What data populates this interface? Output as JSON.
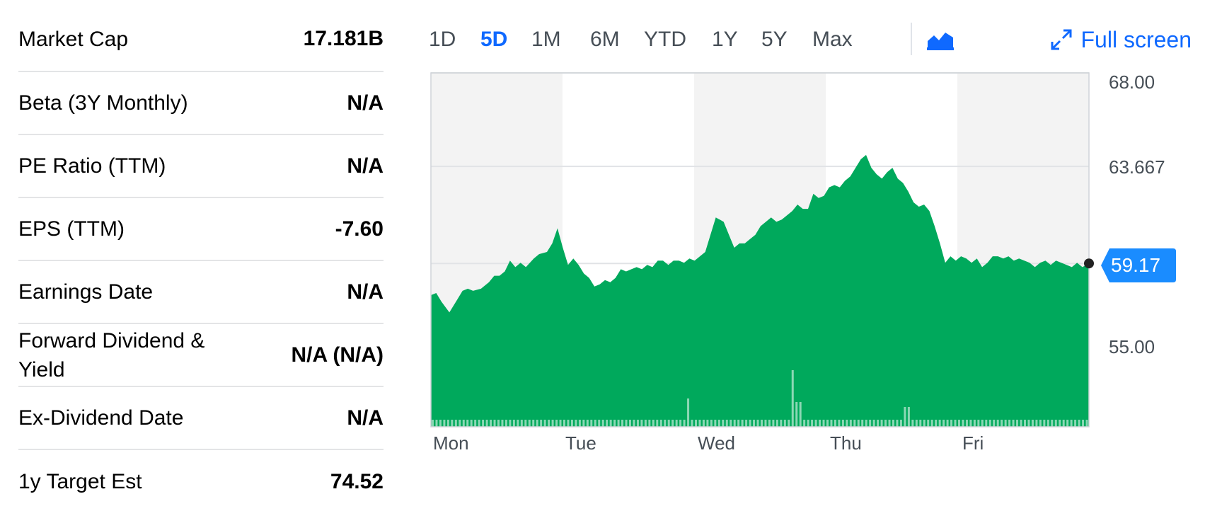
{
  "stats": [
    {
      "label": "Market Cap",
      "value": "17.181B"
    },
    {
      "label": "Beta (3Y Monthly)",
      "value": "N/A"
    },
    {
      "label": "PE Ratio (TTM)",
      "value": "N/A"
    },
    {
      "label": "EPS (TTM)",
      "value": "-7.60"
    },
    {
      "label": "Earnings Date",
      "value": "N/A"
    },
    {
      "label": "Forward Dividend & Yield",
      "value": "N/A (N/A)"
    },
    {
      "label": "Ex-Dividend Date",
      "value": "N/A"
    },
    {
      "label": "1y Target Est",
      "value": "74.52"
    }
  ],
  "toolbar": {
    "ranges": [
      "1D",
      "5D",
      "1M",
      "6M",
      "YTD",
      "1Y",
      "5Y",
      "Max"
    ],
    "active_range": "5D",
    "chart_type_icon": "mountain-chart-icon",
    "fullscreen_icon": "expand-arrows-icon",
    "fullscreen_label": "Full screen"
  },
  "colors": {
    "accent": "#0f69ff",
    "area_fill": "#00a95c",
    "price_tag": "#1a8cff",
    "day_band": "#f3f3f3",
    "text": "#464e56"
  },
  "chart_data": {
    "type": "area",
    "y_ticks": [
      "68.00",
      "63.667",
      "59.17",
      "55.00"
    ],
    "ylim": [
      51.6,
      68.0
    ],
    "x_ticks": [
      "Mon",
      "Tue",
      "Wed",
      "Thu",
      "Fri"
    ],
    "last_price": "59.17",
    "x": [
      0,
      1,
      2,
      3,
      4,
      5,
      6,
      7,
      8,
      9,
      10,
      11,
      12,
      13,
      14,
      15,
      16,
      17,
      18,
      19,
      20,
      21,
      22,
      23,
      24,
      25,
      26,
      27,
      28,
      29,
      30,
      31,
      32,
      33,
      34,
      35,
      36,
      37,
      38,
      39,
      40,
      41,
      42,
      43,
      44,
      45,
      46,
      47,
      48,
      49,
      50,
      51,
      52,
      53,
      54,
      55,
      56,
      57,
      58,
      59,
      60,
      61,
      62,
      63,
      64,
      65,
      66,
      67,
      68,
      69,
      70,
      71,
      72,
      73,
      74,
      75,
      76,
      77,
      78,
      79,
      80,
      81,
      82,
      83,
      84,
      85,
      86,
      87,
      88,
      89,
      90,
      91,
      92,
      93,
      94,
      95,
      96,
      97,
      98,
      99,
      100,
      101,
      102,
      103,
      104,
      105,
      106,
      107,
      108,
      109,
      110,
      111,
      112,
      113,
      114,
      115,
      116,
      117,
      118,
      119,
      120,
      121,
      122,
      123,
      124,
      125,
      126,
      127,
      128,
      129,
      130,
      131,
      132,
      133,
      134,
      135,
      136,
      137,
      138,
      139,
      140,
      141,
      142,
      143,
      144,
      145,
      146,
      147,
      148,
      149,
      150,
      151,
      152,
      153,
      154,
      155,
      156,
      157,
      158,
      159,
      160,
      161,
      162,
      163,
      164,
      165,
      166,
      167,
      168,
      169,
      170,
      171,
      172,
      173,
      174,
      175,
      176,
      177,
      178,
      179,
      180,
      181,
      182,
      183,
      184,
      185,
      186,
      187,
      188,
      189,
      190,
      191,
      192,
      193,
      194,
      195,
      196,
      197,
      198,
      199,
      200,
      201,
      202,
      203,
      204,
      205,
      206,
      207,
      208,
      209,
      210,
      211,
      212,
      213,
      214,
      215,
      216,
      217,
      218,
      219,
      220,
      221,
      222,
      223,
      224,
      225,
      226,
      227,
      228,
      229,
      230,
      231,
      232,
      233,
      234,
      235,
      236,
      237,
      238,
      239,
      240,
      241,
      242,
      243,
      244,
      245,
      246,
      247,
      248,
      249,
      250,
      251,
      252,
      253,
      254,
      255,
      256,
      257,
      258,
      259,
      260,
      261,
      262,
      263,
      264,
      265,
      266,
      267,
      268,
      269,
      270,
      271,
      272,
      273,
      274,
      275,
      276,
      277,
      278,
      279,
      280,
      281,
      282,
      283,
      284,
      285,
      286,
      287,
      288,
      289,
      290,
      291,
      292,
      293,
      294,
      295,
      296,
      297,
      298,
      299,
      300,
      301,
      302,
      303,
      304,
      305,
      306,
      307,
      308,
      309,
      310,
      311,
      312,
      313,
      314,
      315,
      316,
      317,
      318,
      319,
      320,
      321,
      322,
      323,
      324,
      325,
      326,
      327,
      328,
      329,
      330,
      331,
      332,
      333,
      334,
      335,
      336,
      337,
      338,
      339,
      340,
      341,
      342,
      343,
      344,
      345,
      346,
      347,
      348,
      349,
      350,
      351,
      352,
      353,
      354,
      355,
      356,
      357,
      358,
      359,
      360,
      361,
      362,
      363,
      364,
      365,
      366,
      367,
      368,
      369,
      370,
      371,
      372,
      373,
      374,
      375,
      376,
      377,
      378,
      379,
      380,
      381,
      382,
      383,
      384,
      385,
      386,
      387,
      388,
      389,
      390,
      391,
      392,
      393,
      394,
      395,
      396,
      397,
      398,
      399,
      400,
      401,
      402,
      403,
      404,
      405,
      406,
      407,
      408,
      409,
      410,
      411,
      412,
      413,
      414,
      415,
      416,
      417,
      418,
      419,
      420,
      421,
      422,
      423,
      424,
      425,
      426,
      427,
      428,
      429,
      430,
      431,
      432,
      433,
      434,
      435,
      436,
      437,
      438,
      439,
      440,
      441,
      442,
      443,
      444,
      445,
      446,
      447,
      448,
      449,
      450,
      451,
      452,
      453,
      454,
      455,
      456,
      457,
      458,
      459,
      460,
      461,
      462,
      463,
      464,
      465,
      466,
      467,
      468,
      469,
      470,
      471,
      472,
      473,
      474,
      475,
      476,
      477,
      478,
      479,
      480,
      481,
      482,
      483,
      484,
      485,
      486,
      487,
      488,
      489,
      490,
      491,
      492,
      493,
      494,
      495,
      496,
      497,
      498,
      499
    ],
    "price_points": [
      [
        0,
        57.7
      ],
      [
        4,
        57.8
      ],
      [
        8,
        57.4
      ],
      [
        14,
        56.9
      ],
      [
        20,
        57.5
      ],
      [
        24,
        57.9
      ],
      [
        28,
        58.0
      ],
      [
        32,
        57.9
      ],
      [
        38,
        58.0
      ],
      [
        44,
        58.3
      ],
      [
        48,
        58.6
      ],
      [
        52,
        58.6
      ],
      [
        56,
        58.8
      ],
      [
        60,
        59.3
      ],
      [
        64,
        59.0
      ],
      [
        68,
        59.2
      ],
      [
        72,
        59.0
      ],
      [
        78,
        59.4
      ],
      [
        82,
        59.6
      ],
      [
        88,
        59.7
      ],
      [
        92,
        60.1
      ],
      [
        96,
        60.8
      ],
      [
        100,
        59.9
      ],
      [
        104,
        59.1
      ],
      [
        108,
        59.4
      ],
      [
        112,
        59.1
      ],
      [
        116,
        58.7
      ],
      [
        120,
        58.5
      ],
      [
        124,
        58.1
      ],
      [
        128,
        58.2
      ],
      [
        132,
        58.4
      ],
      [
        136,
        58.3
      ],
      [
        140,
        58.5
      ],
      [
        144,
        58.9
      ],
      [
        148,
        58.8
      ],
      [
        152,
        58.9
      ],
      [
        156,
        59.0
      ],
      [
        160,
        58.9
      ],
      [
        164,
        59.1
      ],
      [
        168,
        59.0
      ],
      [
        172,
        59.3
      ],
      [
        176,
        59.3
      ],
      [
        180,
        59.1
      ],
      [
        184,
        59.3
      ],
      [
        188,
        59.3
      ],
      [
        192,
        59.2
      ],
      [
        196,
        59.4
      ],
      [
        200,
        59.3
      ],
      [
        204,
        59.5
      ],
      [
        208,
        59.7
      ],
      [
        212,
        60.5
      ],
      [
        216,
        61.3
      ],
      [
        219,
        61.2
      ],
      [
        222,
        61.1
      ],
      [
        226,
        60.5
      ],
      [
        230,
        59.9
      ],
      [
        234,
        60.1
      ],
      [
        238,
        60.1
      ],
      [
        242,
        60.3
      ],
      [
        246,
        60.5
      ],
      [
        250,
        60.9
      ],
      [
        254,
        61.1
      ],
      [
        258,
        61.3
      ],
      [
        262,
        61.1
      ],
      [
        266,
        61.2
      ],
      [
        270,
        61.4
      ],
      [
        274,
        61.6
      ],
      [
        278,
        61.9
      ],
      [
        282,
        61.7
      ],
      [
        286,
        61.7
      ],
      [
        290,
        62.4
      ],
      [
        294,
        62.2
      ],
      [
        298,
        62.3
      ],
      [
        302,
        62.7
      ],
      [
        306,
        62.8
      ],
      [
        310,
        62.7
      ],
      [
        314,
        63.0
      ],
      [
        318,
        63.2
      ],
      [
        322,
        63.6
      ],
      [
        326,
        64.0
      ],
      [
        330,
        64.2
      ],
      [
        334,
        63.6
      ],
      [
        338,
        63.3
      ],
      [
        342,
        63.1
      ],
      [
        346,
        63.4
      ],
      [
        350,
        63.6
      ],
      [
        354,
        63.1
      ],
      [
        358,
        62.9
      ],
      [
        362,
        62.5
      ],
      [
        366,
        62.0
      ],
      [
        370,
        61.8
      ],
      [
        374,
        61.9
      ],
      [
        378,
        61.6
      ],
      [
        382,
        60.9
      ],
      [
        386,
        60.1
      ],
      [
        390,
        59.2
      ],
      [
        394,
        59.5
      ],
      [
        398,
        59.3
      ],
      [
        402,
        59.5
      ],
      [
        406,
        59.4
      ],
      [
        410,
        59.2
      ],
      [
        414,
        59.4
      ],
      [
        418,
        59.0
      ],
      [
        422,
        59.2
      ],
      [
        426,
        59.5
      ],
      [
        430,
        59.5
      ],
      [
        434,
        59.4
      ],
      [
        438,
        59.5
      ],
      [
        442,
        59.3
      ],
      [
        446,
        59.4
      ],
      [
        450,
        59.3
      ],
      [
        454,
        59.2
      ],
      [
        458,
        59.0
      ],
      [
        462,
        59.2
      ],
      [
        466,
        59.3
      ],
      [
        470,
        59.1
      ],
      [
        474,
        59.3
      ],
      [
        478,
        59.2
      ],
      [
        482,
        59.1
      ],
      [
        486,
        59.0
      ],
      [
        490,
        59.2
      ],
      [
        494,
        59.0
      ],
      [
        499,
        59.17
      ]
    ]
  }
}
